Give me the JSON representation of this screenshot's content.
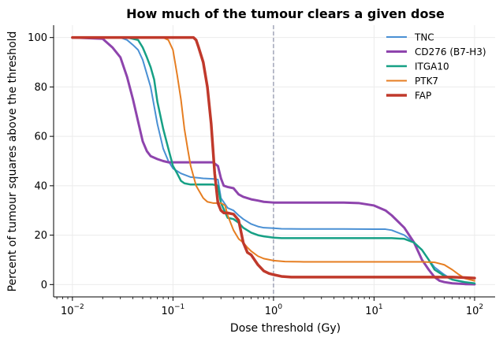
{
  "chart_data": {
    "type": "line",
    "title": "How much of the tumour clears a given dose",
    "xlabel": "Dose threshold (Gy)",
    "ylabel": "Percent of tumour squares above the threshold",
    "xscale": "log",
    "xlim": [
      0.0065,
      160
    ],
    "ylim": [
      -5,
      105
    ],
    "xticks": [
      {
        "value": 0.01,
        "base": "10",
        "exp": "−2"
      },
      {
        "value": 0.1,
        "base": "10",
        "exp": "−1"
      },
      {
        "value": 1,
        "base": "10",
        "exp": "0"
      },
      {
        "value": 10,
        "base": "10",
        "exp": "1"
      },
      {
        "value": 100,
        "base": "10",
        "exp": "2"
      }
    ],
    "yticks": [
      0,
      20,
      40,
      60,
      80,
      100
    ],
    "grid": true,
    "legend_position": "top-right",
    "reference_line": {
      "x": 1,
      "style": "dashed",
      "color": "#8a8fa8"
    },
    "series": [
      {
        "name": "TNC",
        "color": "#4a90d4",
        "width": 2,
        "x": [
          0.01,
          0.03,
          0.035,
          0.04,
          0.045,
          0.05,
          0.06,
          0.07,
          0.08,
          0.09,
          0.1,
          0.12,
          0.15,
          0.2,
          0.25,
          0.28,
          0.3,
          0.35,
          0.4,
          0.45,
          0.5,
          0.6,
          0.7,
          0.8,
          1.0,
          1.2,
          2,
          5,
          10,
          13,
          15,
          20,
          25,
          30,
          35,
          40,
          50,
          60,
          80,
          100
        ],
        "y": [
          100,
          100,
          99,
          97,
          95,
          91,
          80,
          65,
          55,
          50,
          47,
          45,
          43.5,
          43,
          42.8,
          42.5,
          35,
          31,
          30,
          28,
          26.5,
          24.5,
          23.5,
          23,
          22.8,
          22.6,
          22.5,
          22.5,
          22.4,
          22.4,
          22,
          20,
          17,
          14,
          10,
          7,
          4,
          2,
          0.8,
          0.5
        ]
      },
      {
        "name": "CD276 (B7-H3)",
        "color": "#8e44ad",
        "width": 3,
        "x": [
          0.01,
          0.02,
          0.025,
          0.03,
          0.035,
          0.04,
          0.045,
          0.05,
          0.055,
          0.06,
          0.07,
          0.08,
          0.09,
          0.1,
          0.12,
          0.15,
          0.2,
          0.25,
          0.28,
          0.3,
          0.32,
          0.35,
          0.4,
          0.45,
          0.5,
          0.6,
          0.7,
          0.8,
          1.0,
          1.5,
          2,
          5,
          7,
          10,
          13,
          15,
          20,
          25,
          30,
          35,
          40,
          45,
          50,
          60,
          80,
          100
        ],
        "y": [
          100,
          99.5,
          96,
          92,
          84,
          75,
          66,
          58,
          54,
          52,
          50.8,
          50,
          49.5,
          49.5,
          49.5,
          49.5,
          49.5,
          49.5,
          48,
          43,
          40,
          39.5,
          39,
          36.5,
          35.5,
          34.5,
          34,
          33.5,
          33.2,
          33.2,
          33.2,
          33.2,
          33,
          32,
          30,
          28,
          23,
          17,
          10,
          6,
          3,
          1.5,
          1,
          0.5,
          0.2,
          0.1
        ]
      },
      {
        "name": "ITGA10",
        "color": "#16a085",
        "width": 2.5,
        "x": [
          0.01,
          0.035,
          0.04,
          0.045,
          0.05,
          0.055,
          0.06,
          0.065,
          0.07,
          0.08,
          0.09,
          0.1,
          0.11,
          0.12,
          0.13,
          0.15,
          0.2,
          0.25,
          0.28,
          0.3,
          0.35,
          0.4,
          0.45,
          0.5,
          0.6,
          0.7,
          0.8,
          1.0,
          1.2,
          2,
          5,
          10,
          15,
          20,
          25,
          30,
          35,
          40,
          50,
          60,
          80,
          100
        ],
        "y": [
          100,
          100,
          99.5,
          99,
          96,
          92,
          88,
          83,
          74,
          63,
          55,
          48,
          45,
          42,
          41,
          40.5,
          40.5,
          40.5,
          40,
          33,
          27,
          26.5,
          25,
          23,
          21,
          20,
          19.5,
          19,
          18.8,
          18.8,
          18.8,
          18.8,
          18.8,
          18.5,
          17,
          14,
          10,
          6,
          3.5,
          2,
          1,
          0.5
        ]
      },
      {
        "name": "PTK7",
        "color": "#e67e22",
        "width": 2,
        "x": [
          0.01,
          0.08,
          0.09,
          0.1,
          0.11,
          0.12,
          0.13,
          0.14,
          0.15,
          0.17,
          0.2,
          0.22,
          0.25,
          0.28,
          0.3,
          0.33,
          0.35,
          0.4,
          0.45,
          0.5,
          0.55,
          0.6,
          0.7,
          0.8,
          1.0,
          1.3,
          2,
          5,
          10,
          20,
          30,
          40,
          50,
          60,
          70,
          80,
          100
        ],
        "y": [
          100,
          100,
          99,
          95,
          85,
          75,
          63,
          55,
          48,
          40,
          35,
          33.5,
          33,
          33,
          33,
          32,
          28,
          22,
          18.5,
          17,
          15,
          13.5,
          11.5,
          10.5,
          9.7,
          9.3,
          9.2,
          9.2,
          9.2,
          9.2,
          9.2,
          9,
          8,
          6,
          4,
          2.5,
          1.5
        ]
      },
      {
        "name": "FAP",
        "color": "#c0392b",
        "width": 3.5,
        "x": [
          0.01,
          0.16,
          0.17,
          0.18,
          0.2,
          0.22,
          0.24,
          0.26,
          0.28,
          0.3,
          0.32,
          0.35,
          0.4,
          0.45,
          0.5,
          0.55,
          0.6,
          0.7,
          0.8,
          0.9,
          1.0,
          1.2,
          1.5,
          2,
          5,
          10,
          20,
          40,
          60,
          80,
          100
        ],
        "y": [
          100,
          100,
          99,
          96,
          90,
          80,
          65,
          45,
          33,
          30,
          29,
          29,
          28.5,
          26,
          17,
          13,
          12,
          8,
          5.5,
          4.5,
          4,
          3.3,
          3,
          3,
          3,
          3,
          3,
          3,
          3,
          2.8,
          2.6
        ]
      }
    ]
  }
}
